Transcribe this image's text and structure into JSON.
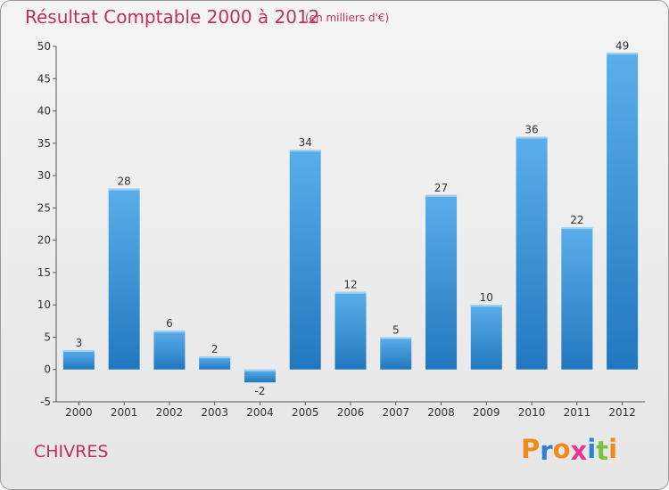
{
  "header": {
    "title": "Résultat Comptable 2000 à 2012",
    "subtitle": "(en milliers d'€)"
  },
  "footer": {
    "commune": "CHIVRES",
    "logo_text": "Proxiti"
  },
  "colors": {
    "title": "#c0305a",
    "bar_top": "#5aaeea",
    "bar_bottom": "#2278bf",
    "logo": [
      "#f08a1c",
      "#2f7fd6",
      "#f08a1c",
      "#e8378f",
      "#2f7fd6",
      "#7cc243",
      "#f08a1c"
    ]
  },
  "chart_data": {
    "type": "bar",
    "title": "Résultat Comptable 2000 à 2012",
    "subtitle": "(en milliers d'€)",
    "xlabel": "",
    "ylabel": "",
    "categories": [
      "2000",
      "2001",
      "2002",
      "2003",
      "2004",
      "2005",
      "2006",
      "2007",
      "2008",
      "2009",
      "2010",
      "2011",
      "2012"
    ],
    "values": [
      3,
      28,
      6,
      2,
      -2,
      34,
      12,
      5,
      27,
      10,
      36,
      22,
      49
    ],
    "data_labels": [
      "3",
      "28",
      "6",
      "2",
      "-2",
      "34",
      "12",
      "5",
      "27",
      "10",
      "36",
      "22",
      "49"
    ],
    "ylim": [
      -5,
      50
    ],
    "yticks": [
      -5,
      0,
      5,
      10,
      15,
      20,
      25,
      30,
      35,
      40,
      45,
      50
    ],
    "ytick_labels": [
      "-5",
      "0",
      "5",
      "10",
      "15",
      "20",
      "25",
      "30",
      "35",
      "40",
      "45",
      "50"
    ],
    "grid": false,
    "legend": "none"
  }
}
